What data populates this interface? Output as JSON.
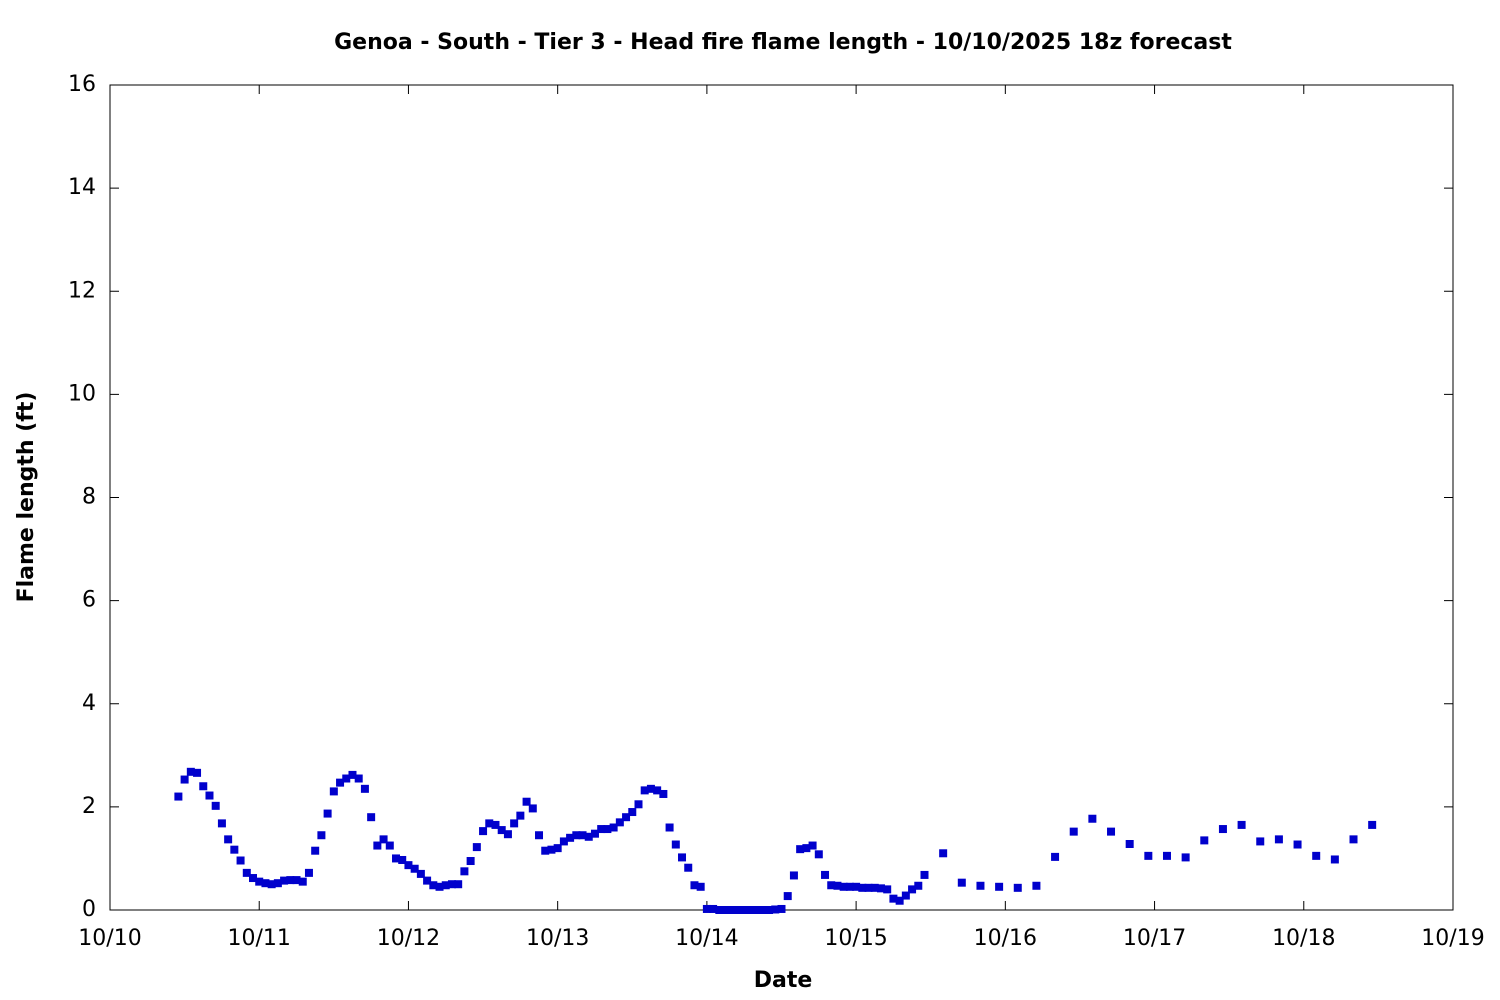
{
  "chart_data": {
    "type": "scatter",
    "title": "Genoa - South - Tier 3 - Head fire flame length - 10/10/2025 18z forecast",
    "x_label": "Date",
    "y_label": "Flame length (ft)",
    "color": "#0000cc",
    "xlim": [
      0,
      9
    ],
    "ylim": [
      0,
      16
    ],
    "xticks": [
      {
        "value": 0,
        "label": "10/10"
      },
      {
        "value": 1,
        "label": "10/11"
      },
      {
        "value": 2,
        "label": "10/12"
      },
      {
        "value": 3,
        "label": "10/13"
      },
      {
        "value": 4,
        "label": "10/14"
      },
      {
        "value": 5,
        "label": "10/15"
      },
      {
        "value": 6,
        "label": "10/16"
      },
      {
        "value": 7,
        "label": "10/17"
      },
      {
        "value": 8,
        "label": "10/18"
      },
      {
        "value": 9,
        "label": "10/19"
      }
    ],
    "yticks": [
      0,
      2,
      4,
      6,
      8,
      10,
      12,
      14,
      16
    ],
    "x": [
      0.4583,
      0.5,
      0.5417,
      0.5833,
      0.625,
      0.6667,
      0.7083,
      0.75,
      0.7917,
      0.8333,
      0.875,
      0.9167,
      0.9583,
      1.0,
      1.0417,
      1.0833,
      1.125,
      1.1667,
      1.2083,
      1.25,
      1.2917,
      1.3333,
      1.375,
      1.4167,
      1.4583,
      1.5,
      1.5417,
      1.5833,
      1.625,
      1.6667,
      1.7083,
      1.75,
      1.7917,
      1.8333,
      1.875,
      1.9167,
      1.9583,
      2.0,
      2.0417,
      2.0833,
      2.125,
      2.1667,
      2.2083,
      2.25,
      2.2917,
      2.3333,
      2.375,
      2.4167,
      2.4583,
      2.5,
      2.5417,
      2.5833,
      2.625,
      2.6667,
      2.7083,
      2.75,
      2.7917,
      2.8333,
      2.875,
      2.9167,
      2.9583,
      3.0,
      3.0417,
      3.0833,
      3.125,
      3.1667,
      3.2083,
      3.25,
      3.2917,
      3.3333,
      3.375,
      3.4167,
      3.4583,
      3.5,
      3.5417,
      3.5833,
      3.625,
      3.6667,
      3.7083,
      3.75,
      3.7917,
      3.8333,
      3.875,
      3.9167,
      3.9583,
      4.0,
      4.0417,
      4.0833,
      4.125,
      4.1667,
      4.2083,
      4.25,
      4.2917,
      4.3333,
      4.375,
      4.4167,
      4.4583,
      4.5,
      4.5417,
      4.5833,
      4.625,
      4.6667,
      4.7083,
      4.75,
      4.7917,
      4.8333,
      4.875,
      4.9167,
      4.9583,
      5.0,
      5.0417,
      5.0833,
      5.125,
      5.1667,
      5.2083,
      5.25,
      5.2917,
      5.3333,
      5.375,
      5.4167,
      5.4583,
      5.5833,
      5.7083,
      5.8333,
      5.9583,
      6.0833,
      6.2083,
      6.3333,
      6.4583,
      6.5833,
      6.7083,
      6.8333,
      6.9583,
      7.0833,
      7.2083,
      7.3333,
      7.4583,
      7.5833,
      7.7083,
      7.8333,
      7.9583,
      8.0833,
      8.2083,
      8.3333,
      8.4583
    ],
    "values": [
      2.2,
      2.53,
      2.68,
      2.66,
      2.4,
      2.22,
      2.02,
      1.68,
      1.37,
      1.17,
      0.96,
      0.72,
      0.62,
      0.55,
      0.52,
      0.5,
      0.52,
      0.57,
      0.58,
      0.58,
      0.55,
      0.72,
      1.15,
      1.45,
      1.87,
      2.3,
      2.47,
      2.55,
      2.62,
      2.55,
      2.35,
      1.8,
      1.25,
      1.37,
      1.25,
      1.0,
      0.97,
      0.87,
      0.8,
      0.7,
      0.57,
      0.48,
      0.45,
      0.48,
      0.5,
      0.5,
      0.75,
      0.95,
      1.22,
      1.53,
      1.68,
      1.65,
      1.55,
      1.47,
      1.68,
      1.83,
      2.1,
      1.97,
      1.45,
      1.15,
      1.17,
      1.2,
      1.33,
      1.4,
      1.45,
      1.45,
      1.42,
      1.48,
      1.57,
      1.57,
      1.6,
      1.7,
      1.8,
      1.9,
      2.05,
      2.32,
      2.35,
      2.32,
      2.25,
      1.6,
      1.27,
      1.02,
      0.82,
      0.48,
      0.45,
      0.02,
      0.02,
      0,
      0,
      0,
      0,
      0,
      0,
      0,
      0,
      0,
      0.01,
      0.02,
      0.27,
      0.67,
      1.18,
      1.2,
      1.25,
      1.08,
      0.68,
      0.48,
      0.47,
      0.45,
      0.45,
      0.45,
      0.43,
      0.43,
      0.43,
      0.42,
      0.4,
      0.22,
      0.18,
      0.28,
      0.4,
      0.47,
      0.68,
      1.1,
      0.53,
      0.47,
      0.45,
      0.43,
      0.47,
      1.03,
      1.52,
      1.77,
      1.52,
      1.28,
      1.05,
      1.05,
      1.02,
      1.35,
      1.57,
      1.65,
      1.33,
      1.37,
      1.27,
      1.05,
      0.98,
      1.37,
      1.65
    ]
  }
}
